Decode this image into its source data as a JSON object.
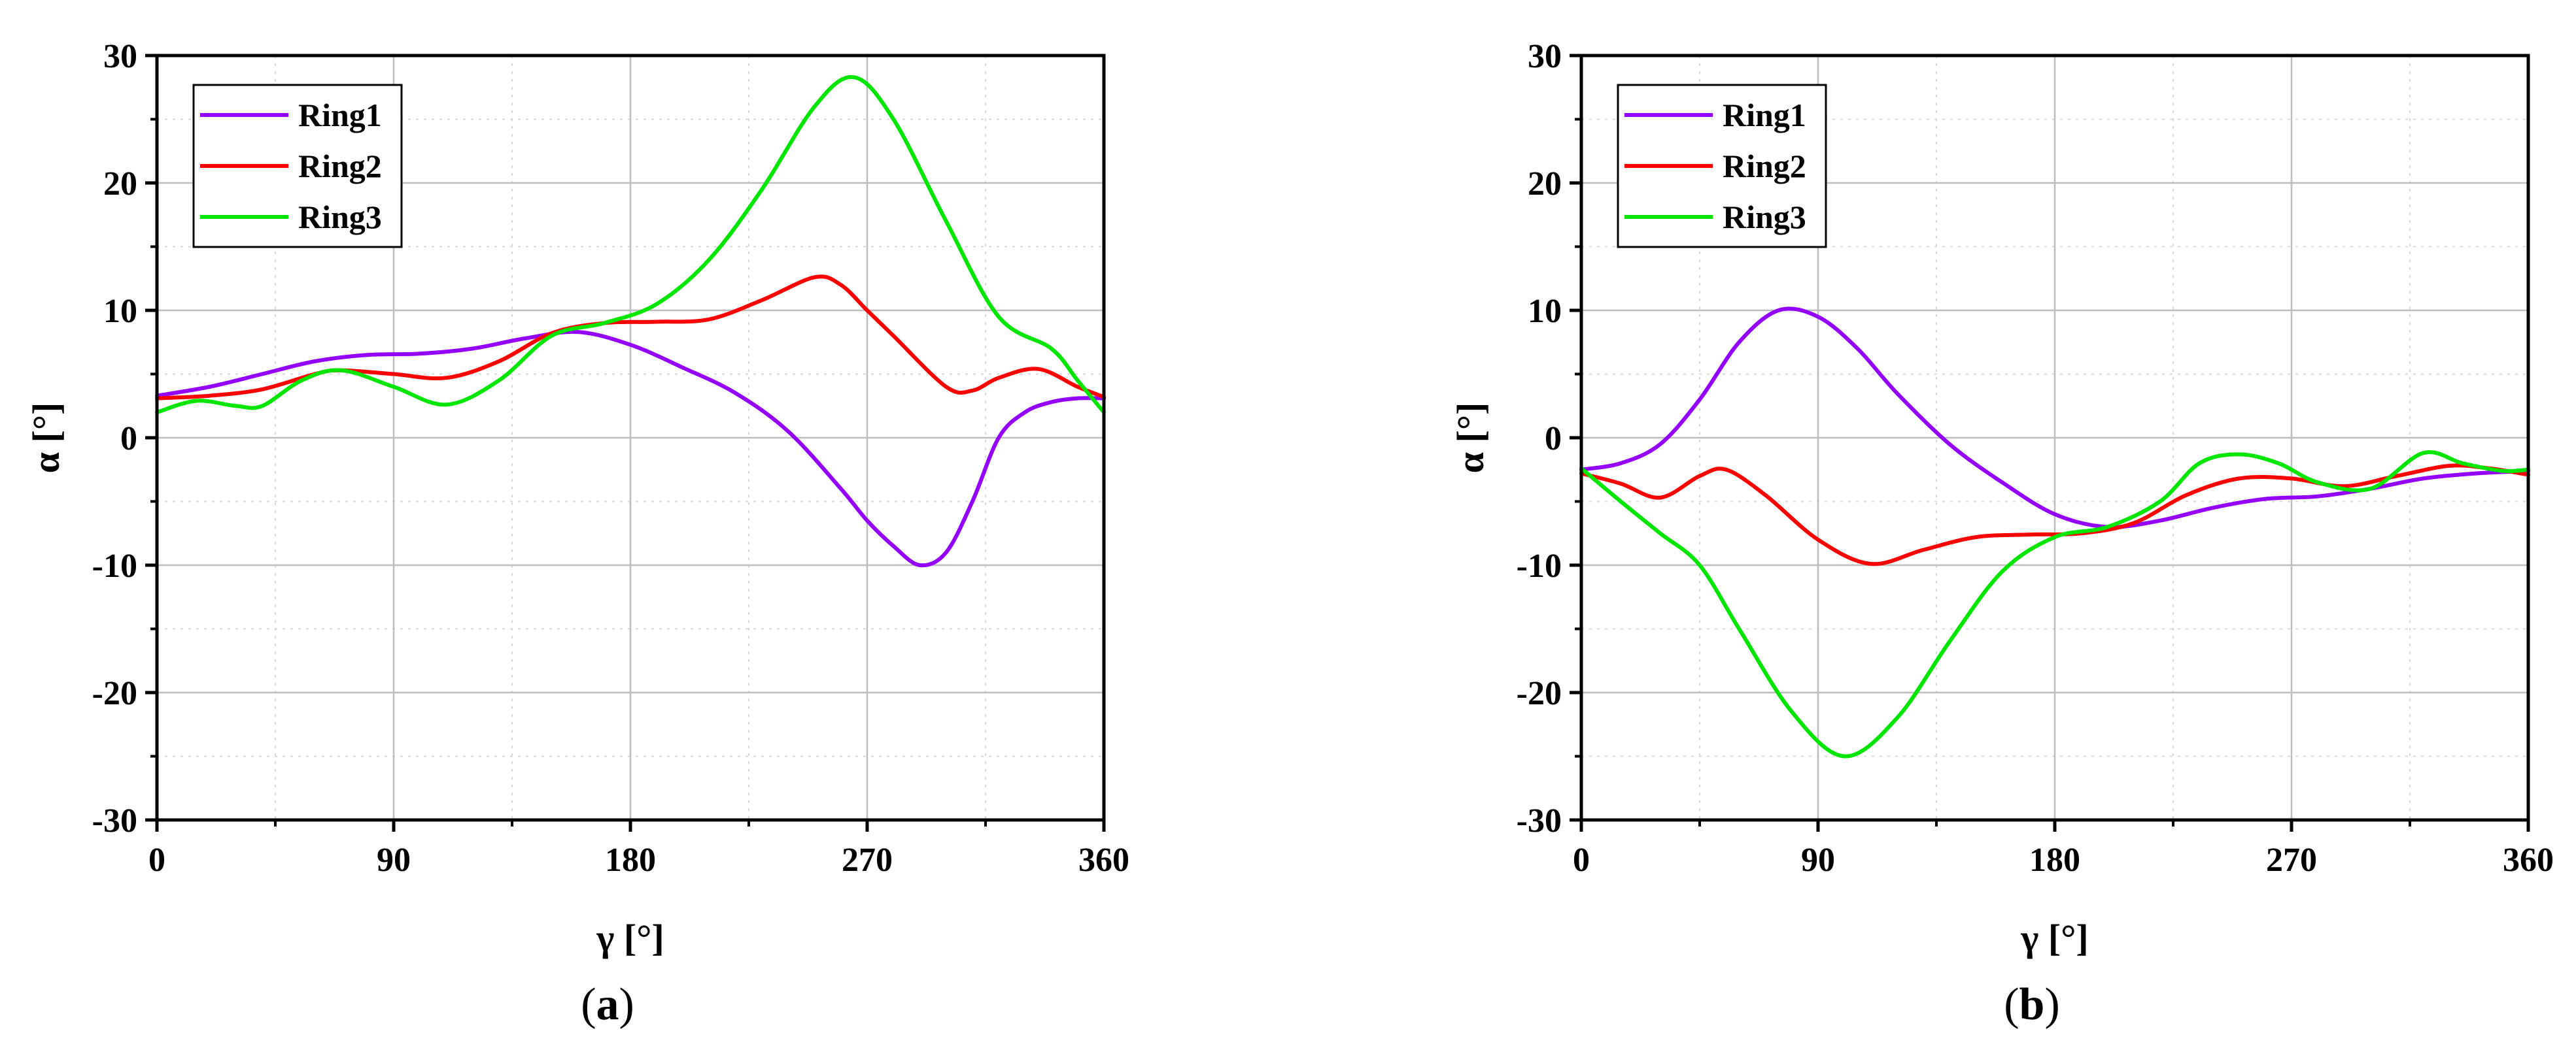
{
  "chart_data": [
    {
      "type": "line",
      "panel_label": "a",
      "xlabel": "γ [°]",
      "ylabel": "α [°]",
      "xlim": [
        0,
        360
      ],
      "ylim": [
        -30,
        30
      ],
      "xticks": [
        0,
        90,
        180,
        270,
        360
      ],
      "yticks": [
        -30,
        -20,
        -10,
        0,
        10,
        20,
        30
      ],
      "grid": true,
      "legend_position": "top-left",
      "series": [
        {
          "name": "Ring1",
          "color": "#9400ff",
          "x": [
            0,
            20,
            40,
            60,
            80,
            100,
            120,
            140,
            160,
            180,
            200,
            220,
            240,
            260,
            270,
            280,
            290,
            300,
            310,
            320,
            330,
            340,
            350,
            360
          ],
          "y": [
            3.3,
            4.0,
            5.0,
            6.0,
            6.5,
            6.6,
            7.0,
            7.8,
            8.3,
            7.3,
            5.5,
            3.5,
            0.5,
            -4.0,
            -6.5,
            -8.5,
            -10.0,
            -9.0,
            -5.0,
            0.0,
            2.0,
            2.8,
            3.1,
            3.1
          ]
        },
        {
          "name": "Ring2",
          "color": "#ff0000",
          "x": [
            0,
            20,
            40,
            60,
            70,
            90,
            110,
            130,
            150,
            170,
            190,
            210,
            230,
            250,
            260,
            270,
            280,
            300,
            310,
            320,
            335,
            350,
            360
          ],
          "y": [
            3.1,
            3.3,
            3.8,
            5.0,
            5.3,
            5.0,
            4.7,
            6.0,
            8.2,
            9.0,
            9.1,
            9.3,
            10.8,
            12.6,
            12.0,
            10.0,
            8.0,
            4.0,
            3.7,
            4.7,
            5.4,
            4.0,
            3.2
          ]
        },
        {
          "name": "Ring3",
          "color": "#00e600",
          "x": [
            0,
            15,
            30,
            40,
            55,
            70,
            90,
            110,
            130,
            150,
            170,
            190,
            210,
            230,
            250,
            265,
            280,
            300,
            320,
            340,
            350,
            360
          ],
          "y": [
            2.0,
            2.9,
            2.5,
            2.5,
            4.5,
            5.3,
            4.0,
            2.6,
            4.5,
            8.0,
            9.0,
            10.5,
            14.0,
            19.5,
            26.0,
            28.3,
            25.0,
            17.0,
            9.5,
            7.0,
            4.5,
            2.0
          ]
        }
      ]
    },
    {
      "type": "line",
      "panel_label": "b",
      "xlabel": "γ [°]",
      "ylabel": "α [°]",
      "xlim": [
        0,
        360
      ],
      "ylim": [
        -30,
        30
      ],
      "xticks": [
        0,
        90,
        180,
        270,
        360
      ],
      "yticks": [
        -30,
        -20,
        -10,
        0,
        10,
        20,
        30
      ],
      "grid": true,
      "legend_position": "top-left",
      "series": [
        {
          "name": "Ring1",
          "color": "#9400ff",
          "x": [
            0,
            15,
            30,
            45,
            60,
            75,
            90,
            105,
            120,
            140,
            160,
            180,
            200,
            220,
            240,
            260,
            280,
            300,
            320,
            340,
            360
          ],
          "y": [
            -2.5,
            -2.0,
            -0.5,
            3.0,
            7.5,
            10.0,
            9.5,
            7.0,
            3.5,
            -0.5,
            -3.5,
            -6.0,
            -7.0,
            -6.5,
            -5.5,
            -4.8,
            -4.6,
            -4.0,
            -3.2,
            -2.8,
            -2.6
          ]
        },
        {
          "name": "Ring2",
          "color": "#ff0000",
          "x": [
            0,
            15,
            30,
            45,
            55,
            70,
            90,
            110,
            130,
            150,
            170,
            190,
            210,
            230,
            250,
            270,
            290,
            310,
            330,
            345,
            360
          ],
          "y": [
            -2.8,
            -3.6,
            -4.7,
            -3.0,
            -2.5,
            -4.5,
            -8.0,
            -9.9,
            -8.8,
            -7.8,
            -7.6,
            -7.5,
            -6.7,
            -4.5,
            -3.2,
            -3.2,
            -3.8,
            -3.0,
            -2.2,
            -2.4,
            -2.9
          ]
        },
        {
          "name": "Ring3",
          "color": "#00e600",
          "x": [
            0,
            15,
            30,
            45,
            60,
            80,
            100,
            120,
            140,
            160,
            180,
            200,
            220,
            235,
            250,
            265,
            280,
            300,
            320,
            335,
            350,
            360
          ],
          "y": [
            -2.4,
            -5.0,
            -7.5,
            -10.0,
            -15.0,
            -21.5,
            -25.0,
            -22.0,
            -16.0,
            -10.5,
            -7.8,
            -7.0,
            -5.0,
            -2.0,
            -1.3,
            -2.0,
            -3.5,
            -4.0,
            -1.2,
            -2.0,
            -2.6,
            -2.5
          ]
        }
      ]
    }
  ]
}
